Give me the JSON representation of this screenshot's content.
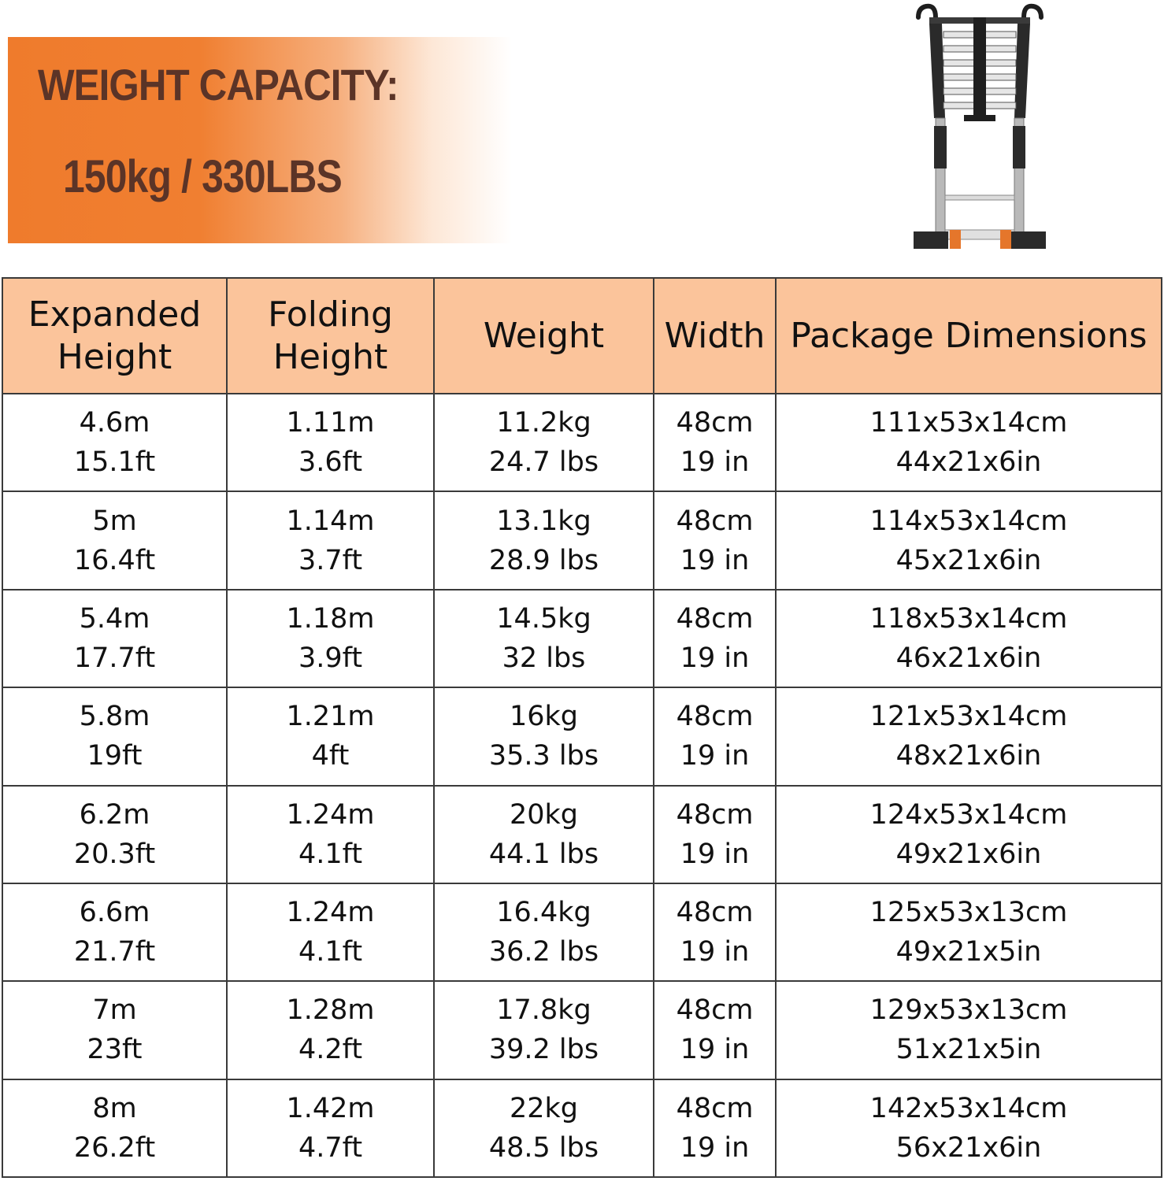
{
  "banner": {
    "title": "WEIGHT CAPACITY:",
    "value": "150kg / 330LBS"
  },
  "colors": {
    "accent_orange": "#ef7b2c",
    "header_fill": "#fbc49b",
    "banner_text": "#5b3427"
  },
  "product_image": {
    "icon": "telescopic-ladder-icon"
  },
  "table": {
    "headers": [
      [
        "Expanded",
        "Height"
      ],
      [
        "Folding",
        "Height"
      ],
      [
        "Weight"
      ],
      [
        "Width"
      ],
      [
        "Package Dimensions"
      ]
    ],
    "rows": [
      [
        [
          "4.6m",
          "15.1ft"
        ],
        [
          "1.11m",
          "3.6ft"
        ],
        [
          "11.2kg",
          "24.7 lbs"
        ],
        [
          "48cm",
          "19 in"
        ],
        [
          "111x53x14cm",
          "44x21x6in"
        ]
      ],
      [
        [
          "5m",
          "16.4ft"
        ],
        [
          "1.14m",
          "3.7ft"
        ],
        [
          "13.1kg",
          "28.9 lbs"
        ],
        [
          "48cm",
          "19 in"
        ],
        [
          "114x53x14cm",
          "45x21x6in"
        ]
      ],
      [
        [
          "5.4m",
          "17.7ft"
        ],
        [
          "1.18m",
          "3.9ft"
        ],
        [
          "14.5kg",
          "32 lbs"
        ],
        [
          "48cm",
          "19 in"
        ],
        [
          "118x53x14cm",
          "46x21x6in"
        ]
      ],
      [
        [
          "5.8m",
          "19ft"
        ],
        [
          "1.21m",
          "4ft"
        ],
        [
          "16kg",
          "35.3 lbs"
        ],
        [
          "48cm",
          "19 in"
        ],
        [
          "121x53x14cm",
          "48x21x6in"
        ]
      ],
      [
        [
          "6.2m",
          "20.3ft"
        ],
        [
          "1.24m",
          "4.1ft"
        ],
        [
          "20kg",
          "44.1 lbs"
        ],
        [
          "48cm",
          "19 in"
        ],
        [
          "124x53x14cm",
          "49x21x6in"
        ]
      ],
      [
        [
          "6.6m",
          "21.7ft"
        ],
        [
          "1.24m",
          "4.1ft"
        ],
        [
          "16.4kg",
          "36.2 lbs"
        ],
        [
          "48cm",
          "19 in"
        ],
        [
          "125x53x13cm",
          "49x21x5in"
        ]
      ],
      [
        [
          "7m",
          "23ft"
        ],
        [
          "1.28m",
          "4.2ft"
        ],
        [
          "17.8kg",
          "39.2 lbs"
        ],
        [
          "48cm",
          "19 in"
        ],
        [
          "129x53x13cm",
          "51x21x5in"
        ]
      ],
      [
        [
          "8m",
          "26.2ft"
        ],
        [
          "1.42m",
          "4.7ft"
        ],
        [
          "22kg",
          "48.5 lbs"
        ],
        [
          "48cm",
          "19 in"
        ],
        [
          "142x53x14cm",
          "56x21x6in"
        ]
      ]
    ]
  }
}
